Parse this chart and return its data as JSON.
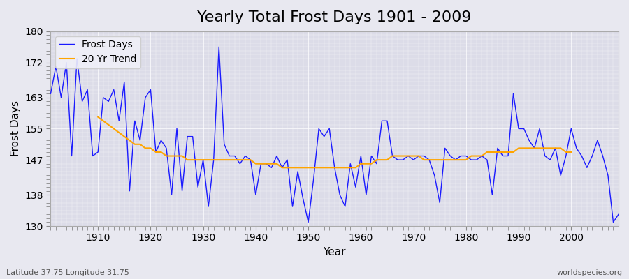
{
  "title": "Yearly Total Frost Days 1901 - 2009",
  "xlabel": "Year",
  "ylabel": "Frost Days",
  "subtitle": "Latitude 37.75 Longitude 31.75",
  "watermark": "worldspecies.org",
  "years": [
    1901,
    1902,
    1903,
    1904,
    1905,
    1906,
    1907,
    1908,
    1909,
    1910,
    1911,
    1912,
    1913,
    1914,
    1915,
    1916,
    1917,
    1918,
    1919,
    1920,
    1921,
    1922,
    1923,
    1924,
    1925,
    1926,
    1927,
    1928,
    1929,
    1930,
    1931,
    1932,
    1933,
    1934,
    1935,
    1936,
    1937,
    1938,
    1939,
    1940,
    1941,
    1942,
    1943,
    1944,
    1945,
    1946,
    1947,
    1948,
    1949,
    1950,
    1951,
    1952,
    1953,
    1954,
    1955,
    1956,
    1957,
    1958,
    1959,
    1960,
    1961,
    1962,
    1963,
    1964,
    1965,
    1966,
    1967,
    1968,
    1969,
    1970,
    1971,
    1972,
    1973,
    1974,
    1975,
    1976,
    1977,
    1978,
    1979,
    1980,
    1981,
    1982,
    1983,
    1984,
    1985,
    1986,
    1987,
    1988,
    1989,
    1990,
    1991,
    1992,
    1993,
    1994,
    1995,
    1996,
    1997,
    1998,
    1999,
    2000,
    2001,
    2002,
    2003,
    2004,
    2005,
    2006,
    2007,
    2008,
    2009
  ],
  "frost_days": [
    164,
    171,
    163,
    172,
    148,
    173,
    162,
    165,
    148,
    149,
    163,
    162,
    165,
    157,
    167,
    139,
    157,
    152,
    163,
    165,
    149,
    152,
    150,
    138,
    155,
    139,
    153,
    153,
    140,
    147,
    135,
    147,
    176,
    151,
    148,
    148,
    146,
    148,
    147,
    138,
    146,
    146,
    145,
    148,
    145,
    147,
    135,
    144,
    137,
    131,
    142,
    155,
    153,
    155,
    145,
    138,
    135,
    146,
    140,
    148,
    138,
    148,
    146,
    157,
    157,
    148,
    147,
    147,
    148,
    147,
    148,
    148,
    147,
    143,
    136,
    150,
    148,
    147,
    148,
    148,
    147,
    147,
    148,
    147,
    138,
    150,
    148,
    148,
    164,
    155,
    155,
    152,
    150,
    155,
    148,
    147,
    150,
    143,
    148,
    155,
    150,
    148,
    145,
    148,
    152,
    148,
    143,
    131,
    133
  ],
  "trend_years": [
    1910,
    1911,
    1912,
    1913,
    1914,
    1915,
    1916,
    1917,
    1918,
    1919,
    1920,
    1921,
    1922,
    1923,
    1924,
    1925,
    1926,
    1927,
    1928,
    1929,
    1930,
    1931,
    1932,
    1933,
    1934,
    1935,
    1936,
    1937,
    1938,
    1939,
    1940,
    1941,
    1942,
    1943,
    1944,
    1945,
    1946,
    1947,
    1948,
    1949,
    1950,
    1951,
    1952,
    1953,
    1954,
    1955,
    1956,
    1957,
    1958,
    1959,
    1960,
    1961,
    1962,
    1963,
    1964,
    1965,
    1966,
    1967,
    1968,
    1969,
    1970,
    1971,
    1972,
    1973,
    1974,
    1975,
    1976,
    1977,
    1978,
    1979,
    1980,
    1981,
    1982,
    1983,
    1984,
    1985,
    1986,
    1987,
    1988,
    1989,
    1990,
    1991,
    1992,
    1993,
    1994,
    1995,
    1996,
    1997,
    1998,
    1999,
    2000
  ],
  "trend_values": [
    158,
    157,
    156,
    155,
    154,
    153,
    152,
    151,
    151,
    150,
    150,
    149,
    149,
    148,
    148,
    148,
    148,
    147,
    147,
    147,
    147,
    147,
    147,
    147,
    147,
    147,
    147,
    147,
    147,
    147,
    146,
    146,
    146,
    146,
    146,
    145,
    145,
    145,
    145,
    145,
    145,
    145,
    145,
    145,
    145,
    145,
    145,
    145,
    145,
    145,
    146,
    146,
    146,
    147,
    147,
    147,
    148,
    148,
    148,
    148,
    148,
    148,
    147,
    147,
    147,
    147,
    147,
    147,
    147,
    147,
    147,
    148,
    148,
    148,
    149,
    149,
    149,
    149,
    149,
    149,
    150,
    150,
    150,
    150,
    150,
    150,
    150,
    150,
    150,
    149,
    149
  ],
  "line_color": "#1a1aff",
  "trend_color": "#ffa500",
  "bg_color": "#e8e8f0",
  "plot_bg_color": "#dcdce8",
  "ylim": [
    130,
    180
  ],
  "yticks": [
    130,
    138,
    147,
    155,
    163,
    172,
    180
  ],
  "xlim": [
    1901,
    2009
  ],
  "xticks": [
    1910,
    1920,
    1930,
    1940,
    1950,
    1960,
    1970,
    1980,
    1990,
    2000
  ],
  "grid_color": "#ffffff",
  "title_fontsize": 16,
  "axis_fontsize": 11,
  "label_fontsize": 10
}
